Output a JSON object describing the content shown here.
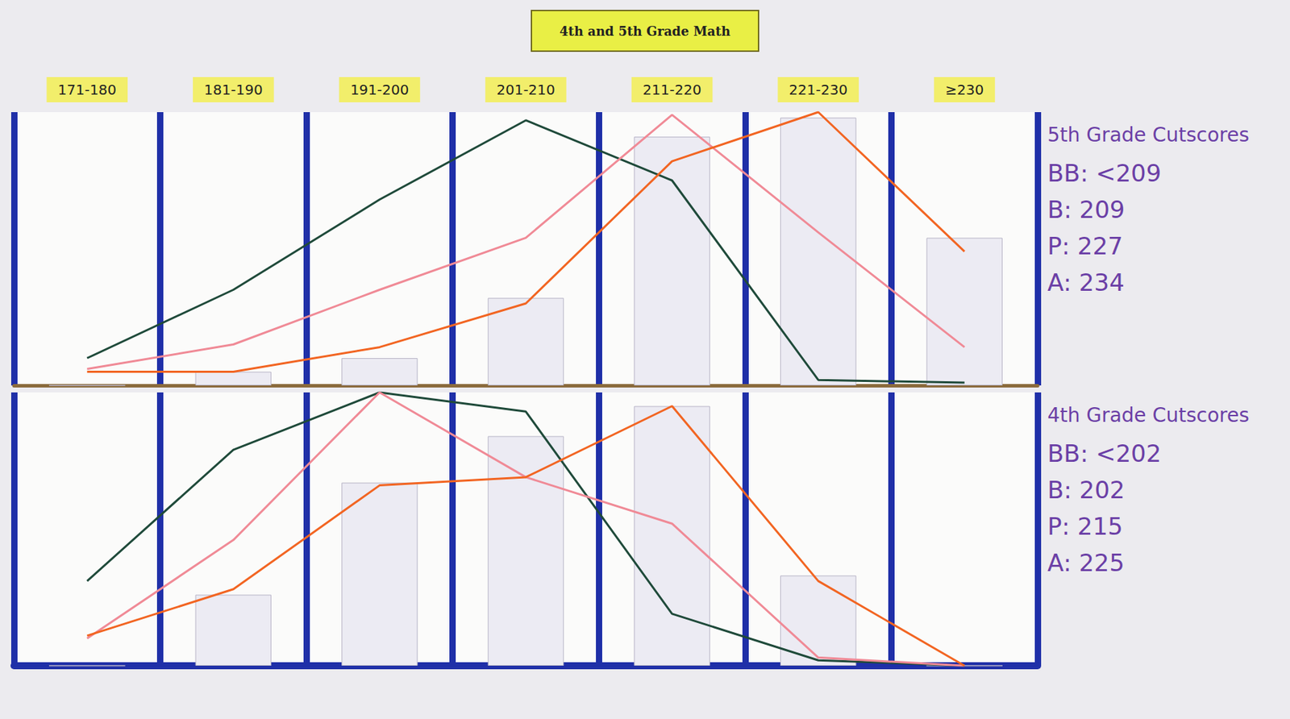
{
  "chart_data": [
    {
      "type": "bar",
      "title": "4th and 5th Grade Math",
      "categories": [
        "171-180",
        "181-190",
        "191-200",
        "201-210",
        "211-220",
        "221-230",
        "≥230"
      ],
      "ylim": [
        0,
        100
      ],
      "yticks": [
        0,
        100
      ],
      "grid": true,
      "tick_labels": "x",
      "annotations": [
        "5th Grade Cutscores",
        "BB: <209",
        "B: 209",
        "P: 227",
        "A: 234"
      ],
      "series": [
        {
          "type": "bar",
          "color": "#ecebf3",
          "values": [
            0,
            5,
            10,
            32,
            91,
            98,
            54
          ]
        },
        {
          "type": "line",
          "color": "#1f4a3a",
          "marker": "none",
          "line_style": "solid",
          "values": [
            10,
            35,
            68,
            97,
            75,
            2,
            1
          ]
        },
        {
          "type": "line",
          "color": "#f08a96",
          "marker": "none",
          "line_style": "solid",
          "values": [
            6,
            15,
            35,
            54,
            99,
            56,
            14
          ]
        },
        {
          "type": "line",
          "color": "#f26522",
          "marker": "none",
          "line_style": "solid",
          "values": [
            5,
            5,
            14,
            30,
            82,
            100,
            49
          ]
        }
      ]
    },
    {
      "type": "bar",
      "categories": [
        "171-180",
        "181-190",
        "191-200",
        "201-210",
        "211-220",
        "221-230",
        "≥230"
      ],
      "ylim": [
        0,
        100
      ],
      "yticks": [
        0,
        100
      ],
      "grid": true,
      "tick_labels": false,
      "annotations": [
        "4th Grade Cutscores",
        "BB: <202",
        "B: 202",
        "P: 215",
        "A: 225"
      ],
      "series": [
        {
          "type": "bar",
          "color": "#ecebf3",
          "values": [
            0,
            26,
            67,
            84,
            95,
            33,
            0
          ]
        },
        {
          "type": "line",
          "color": "#1f4a3a",
          "marker": "none",
          "line_style": "solid",
          "values": [
            31,
            79,
            100,
            93,
            19,
            2,
            0
          ]
        },
        {
          "type": "line",
          "color": "#f08a96",
          "marker": "none",
          "line_style": "solid",
          "values": [
            10,
            46,
            100,
            69,
            52,
            3,
            0
          ]
        },
        {
          "type": "line",
          "color": "#f26522",
          "marker": "none",
          "line_style": "solid",
          "values": [
            11,
            28,
            66,
            69,
            95,
            31,
            0
          ]
        }
      ]
    }
  ]
}
